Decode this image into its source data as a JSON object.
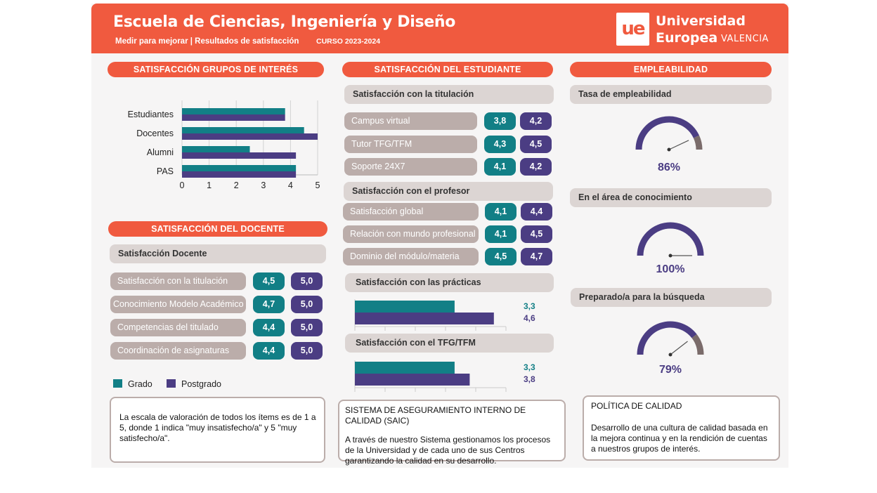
{
  "header": {
    "title": "Escuela de Ciencias, Ingeniería y Diseño",
    "subtitle": "Medir para mejorar | Resultados de satisfacción",
    "course": "CURSO 2023-2024",
    "logo_mark": "ue",
    "logo_line1": "Universidad",
    "logo_line2": "Europea",
    "logo_city": "VALENCIA"
  },
  "colors": {
    "accent": "#f05a3f",
    "grado": "#127f86",
    "postgrado": "#4b3d83",
    "chip": "#bbadaa",
    "subheader": "#dcd5d3"
  },
  "grupos": {
    "title": "SATISFACCIÓN GRUPOS DE INTERÉS"
  },
  "chart_data": [
    {
      "type": "bar",
      "orientation": "horizontal",
      "categories": [
        "Estudiantes",
        "Docentes",
        "Alumni",
        "PAS"
      ],
      "series": [
        {
          "name": "Grado",
          "values": [
            3.8,
            4.5,
            2.5,
            4.2
          ],
          "color": "#127f86"
        },
        {
          "name": "Postgrado",
          "values": [
            3.8,
            5.0,
            4.2,
            4.2
          ],
          "color": "#4b3d83"
        }
      ],
      "xlim": [
        0,
        5
      ],
      "xticks": [
        "0",
        "1",
        "2",
        "3",
        "4",
        "5"
      ],
      "grid": true
    },
    {
      "type": "bar",
      "orientation": "horizontal",
      "title": "Satisfacción con las prácticas",
      "series": [
        {
          "name": "Grado",
          "values": [
            3.3
          ],
          "labels": [
            "3,3"
          ],
          "color": "#127f86"
        },
        {
          "name": "Postgrado",
          "values": [
            4.6
          ],
          "labels": [
            "4,6"
          ],
          "color": "#4b3d83"
        }
      ],
      "xlim": [
        0,
        5
      ]
    },
    {
      "type": "bar",
      "orientation": "horizontal",
      "title": "Satisfacción con el TFG/TFM",
      "series": [
        {
          "name": "Grado",
          "values": [
            3.3
          ],
          "labels": [
            "3,3"
          ],
          "color": "#127f86"
        },
        {
          "name": "Postgrado",
          "values": [
            3.8
          ],
          "labels": [
            "3,8"
          ],
          "color": "#4b3d83"
        }
      ],
      "xlim": [
        0,
        5
      ]
    }
  ],
  "docente": {
    "title": "SATISFACCIÓN DEL DOCENTE",
    "subtitle": "Satisfacción Docente",
    "items": [
      {
        "label": "Satisfacción con la titulación",
        "grado": "4,5",
        "postgrado": "5,0"
      },
      {
        "label": "Conocimiento Modelo Académico",
        "grado": "4,7",
        "postgrado": "5,0"
      },
      {
        "label": "Competencias del titulado",
        "grado": "4,4",
        "postgrado": "5,0"
      },
      {
        "label": "Coordinación de asignaturas",
        "grado": "4,4",
        "postgrado": "5,0"
      }
    ]
  },
  "legend": {
    "grado": "Grado",
    "postgrado": "Postgrado"
  },
  "escala_note": "La escala de valoración de todos los ítems es de 1 a 5, donde 1 indica \"muy insatisfecho/a\" y 5 \"muy satisfecho/a\".",
  "estudiante": {
    "title": "SATISFACCIÓN DEL ESTUDIANTE",
    "titulacion": {
      "subtitle": "Satisfacción con la titulación",
      "items": [
        {
          "label": "Campus virtual",
          "grado": "3,8",
          "postgrado": "4,2"
        },
        {
          "label": "Tutor TFG/TFM",
          "grado": "4,3",
          "postgrado": "4,5"
        },
        {
          "label": "Soporte 24X7",
          "grado": "4,1",
          "postgrado": "4,2"
        }
      ]
    },
    "profesor": {
      "subtitle": "Satisfacción con el profesor",
      "items": [
        {
          "label": "Satisfacción global",
          "grado": "4,1",
          "postgrado": "4,4"
        },
        {
          "label": "Relación con mundo profesional",
          "grado": "4,1",
          "postgrado": "4,5"
        },
        {
          "label": "Dominio del módulo/materia",
          "grado": "4,5",
          "postgrado": "4,7"
        }
      ]
    },
    "practicas": {
      "subtitle": "Satisfacción con las prácticas"
    },
    "tfg": {
      "subtitle": "Satisfacción con el TFG/TFM"
    }
  },
  "saic": {
    "title": "SISTEMA DE ASEGURAMIENTO INTERNO DE CALIDAD (SAIC)",
    "body": "A través de nuestro Sistema gestionamos los procesos de la Universidad y de cada uno de sus Centros garantizando la calidad en su desarrollo."
  },
  "empleabilidad": {
    "title": "EMPLEABILIDAD",
    "gauges": [
      {
        "label": "Tasa de empleabilidad",
        "value": 86,
        "text": "86%"
      },
      {
        "label": "En el área de conocimiento",
        "value": 100,
        "text": "100%"
      },
      {
        "label": "Preparado/a para la búsqueda",
        "value": 79,
        "text": "79%"
      }
    ]
  },
  "politica": {
    "title": "POLÍTICA DE CALIDAD",
    "body": "Desarrollo de una cultura de calidad basada en la mejora continua y en la rendición de cuentas a nuestros grupos de interés."
  }
}
